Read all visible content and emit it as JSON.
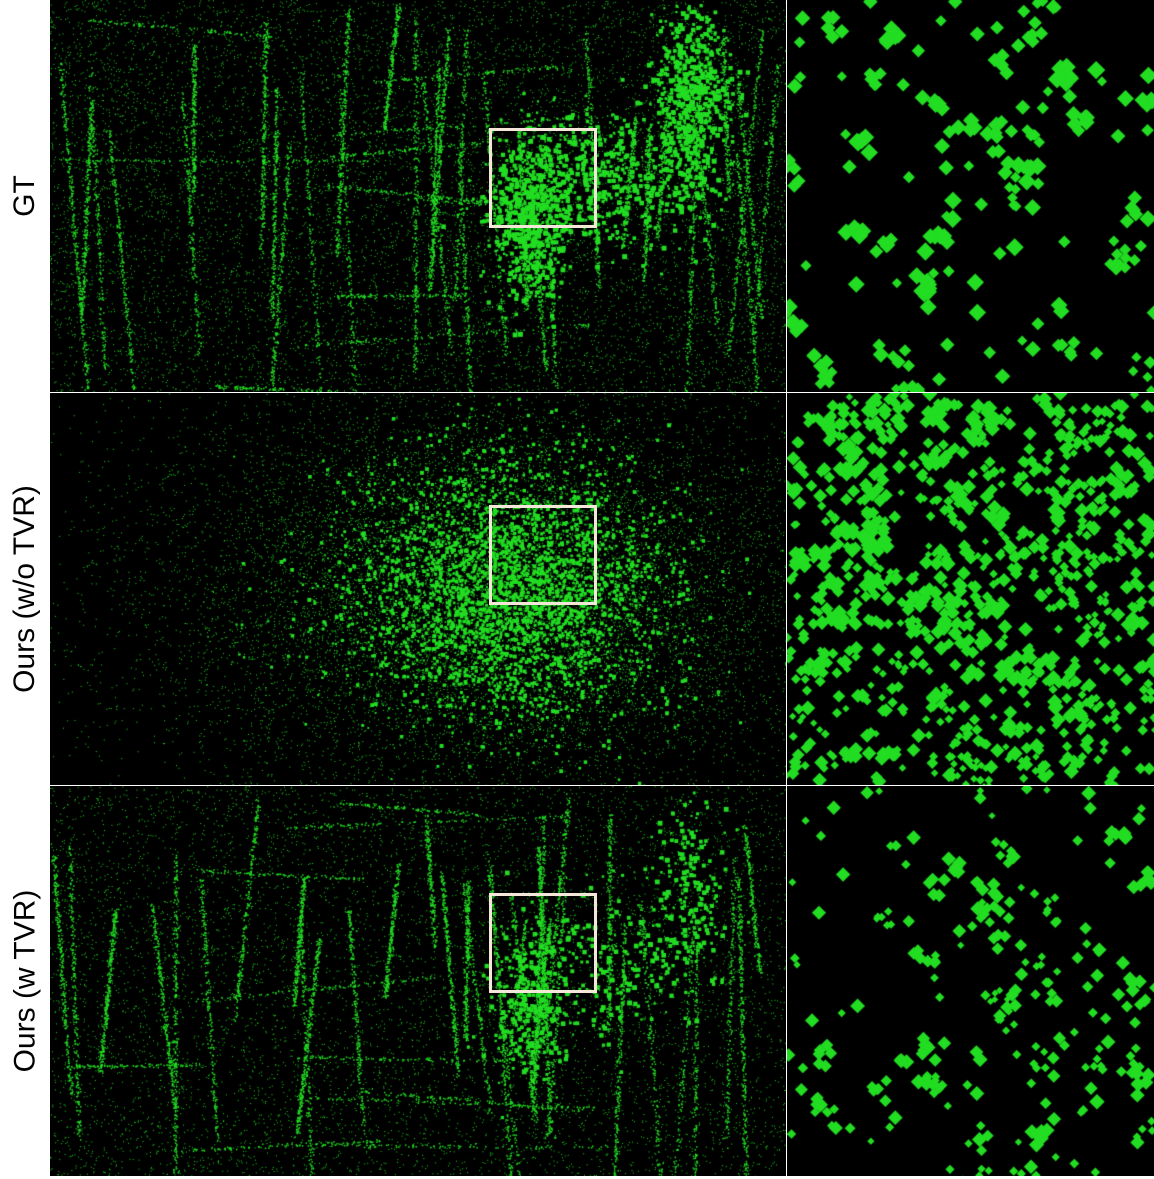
{
  "rows": [
    {
      "label": "GT",
      "pattern": "structured-dense"
    },
    {
      "label": "Ours (w/o TVR)",
      "pattern": "diffuse-blob"
    },
    {
      "label": "Ours (w TVR)",
      "pattern": "structured-sparse"
    }
  ],
  "colors": {
    "background": "#000000",
    "points": "#22dd22",
    "roi_box": "#f4e6d8"
  }
}
